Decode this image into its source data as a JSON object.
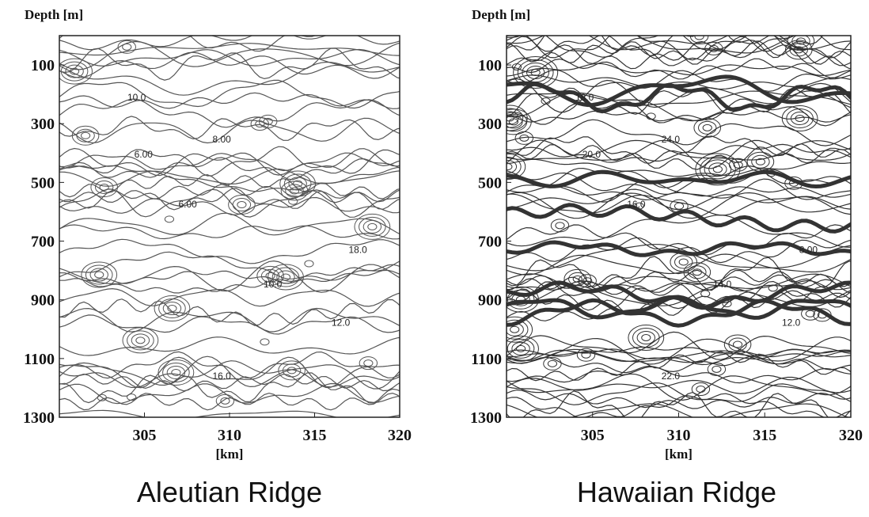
{
  "chart_data": [
    {
      "type": "contour",
      "title": "Aleutian Ridge",
      "ylabel": "Depth [m]",
      "xlabel": "[km]",
      "xlim": [
        300,
        320
      ],
      "xticks": [
        305,
        310,
        315,
        320
      ],
      "ylim": [
        0,
        1300
      ],
      "yticks": [
        100,
        300,
        500,
        700,
        900,
        1100,
        1300
      ],
      "y_inverted": true,
      "color": "#555555",
      "density": "low",
      "annotations": [
        "10.0",
        "6.00",
        "8.00",
        "6.00",
        "10.0",
        "12.0",
        "16.0",
        "18.0"
      ]
    },
    {
      "type": "contour",
      "title": "Hawaiian Ridge",
      "ylabel": "Depth [m]",
      "xlabel": "[km]",
      "xlim": [
        300,
        320
      ],
      "xticks": [
        305,
        310,
        315,
        320
      ],
      "ylim": [
        0,
        1300
      ],
      "yticks": [
        100,
        300,
        500,
        700,
        900,
        1100,
        1300
      ],
      "y_inverted": true,
      "color": "#333333",
      "density": "high",
      "annotations": [
        "18.0",
        "20.0",
        "24.0",
        "16.0",
        "14.0",
        "12.0",
        "22.0",
        "8.00"
      ]
    }
  ]
}
